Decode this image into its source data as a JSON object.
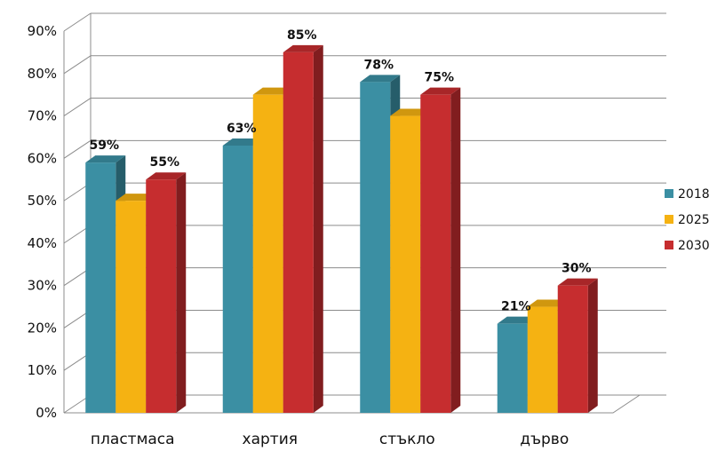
{
  "chart_data": {
    "type": "bar",
    "title": "",
    "xlabel": "",
    "ylabel": "",
    "categories": [
      "пластмаса",
      "хартия",
      "стъкло",
      "дърво"
    ],
    "series": [
      {
        "name": "2018",
        "color": "#3b8fa3",
        "values": [
          59,
          63,
          78,
          21
        ]
      },
      {
        "name": "2025",
        "color": "#f5b212",
        "values": [
          50,
          75,
          70,
          25
        ]
      },
      {
        "name": "2030",
        "color": "#c62d2f",
        "values": [
          55,
          85,
          75,
          30
        ]
      }
    ],
    "data_labels": [
      {
        "series": 0,
        "category": 0,
        "text": "59%"
      },
      {
        "series": 2,
        "category": 0,
        "text": "55%"
      },
      {
        "series": 0,
        "category": 1,
        "text": "63%"
      },
      {
        "series": 2,
        "category": 1,
        "text": "85%"
      },
      {
        "series": 0,
        "category": 2,
        "text": "78%"
      },
      {
        "series": 2,
        "category": 2,
        "text": "75%"
      },
      {
        "series": 0,
        "category": 3,
        "text": "21%"
      },
      {
        "series": 2,
        "category": 3,
        "text": "30%"
      }
    ],
    "y_ticks": [
      "0%",
      "10%",
      "20%",
      "30%",
      "40%",
      "50%",
      "60%",
      "70%",
      "80%",
      "90%"
    ],
    "ylim": [
      0,
      90
    ],
    "grid": true,
    "legend_position": "right",
    "style": "3d-clustered-column"
  }
}
